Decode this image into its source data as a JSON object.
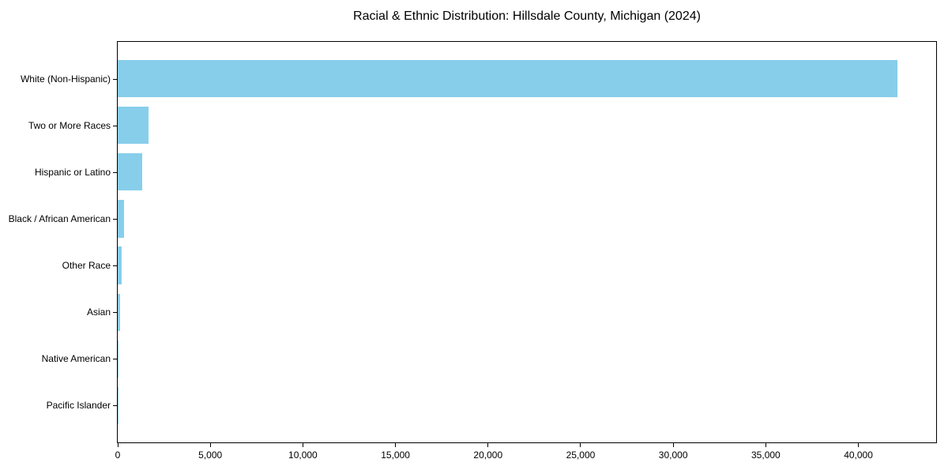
{
  "page": {
    "background_color": "#ffffff"
  },
  "chart_data": {
    "type": "bar",
    "orientation": "horizontal",
    "title": "Racial & Ethnic Distribution: Hillsdale County, Michigan (2024)",
    "categories": [
      "White (Non-Hispanic)",
      "Two or More Races",
      "Hispanic or Latino",
      "Black / African American",
      "Other Race",
      "Asian",
      "Native American",
      "Pacific Islander"
    ],
    "values": [
      42100,
      1650,
      1320,
      350,
      230,
      130,
      50,
      10
    ],
    "bar_color": "#87CEEB",
    "axis_color": "#000000",
    "text_color": "#000000",
    "xlabel": "",
    "ylabel": "",
    "xlim": [
      0,
      44200
    ],
    "x_ticks": [
      0,
      5000,
      10000,
      15000,
      20000,
      25000,
      30000,
      35000,
      40000
    ],
    "x_tick_labels": [
      "0",
      "5,000",
      "10,000",
      "15,000",
      "20,000",
      "25,000",
      "30,000",
      "35,000",
      "40,000"
    ],
    "grid": false,
    "legend": "none",
    "bars_sorted_descending": true
  }
}
